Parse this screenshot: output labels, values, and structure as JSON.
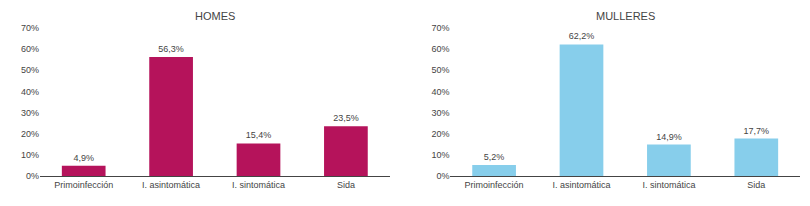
{
  "chart_data": [
    {
      "type": "bar",
      "title": "HOMES",
      "categories": [
        "Primoinfección",
        "I. asintomática",
        "I. sintomática",
        "Sida"
      ],
      "values": [
        4.9,
        56.3,
        15.4,
        23.5
      ],
      "value_labels": [
        "4,9%",
        "56,3%",
        "15,4%",
        "23,5%"
      ],
      "data_labels": true,
      "color": "#B5135B",
      "ylim": [
        0,
        70
      ],
      "yticks": [
        {
          "value": 0,
          "label": "0%"
        },
        {
          "value": 10,
          "label": "10%"
        },
        {
          "value": 20,
          "label": "20%"
        },
        {
          "value": 30,
          "label": "30%"
        },
        {
          "value": 40,
          "label": "40%"
        },
        {
          "value": 50,
          "label": "50%"
        },
        {
          "value": 60,
          "label": "60%"
        },
        {
          "value": 70,
          "label": "70%"
        }
      ],
      "grid": false
    },
    {
      "type": "bar",
      "title": "MULLERES",
      "categories": [
        "Primoinfección",
        "I. asintomática",
        "I. sintomática",
        "Sida"
      ],
      "values": [
        5.2,
        62.2,
        14.9,
        17.7
      ],
      "value_labels": [
        "5,2%",
        "62,2%",
        "14,9%",
        "17,7%"
      ],
      "data_labels": true,
      "color": "#87CEEB",
      "ylim": [
        0,
        70
      ],
      "yticks": [
        {
          "value": 0,
          "label": "0%"
        },
        {
          "value": 10,
          "label": "10%"
        },
        {
          "value": 20,
          "label": "20%"
        },
        {
          "value": 30,
          "label": "30%"
        },
        {
          "value": 40,
          "label": "40%"
        },
        {
          "value": 50,
          "label": "50%"
        },
        {
          "value": 60,
          "label": "60%"
        },
        {
          "value": 70,
          "label": "70%"
        }
      ],
      "grid": false
    }
  ]
}
